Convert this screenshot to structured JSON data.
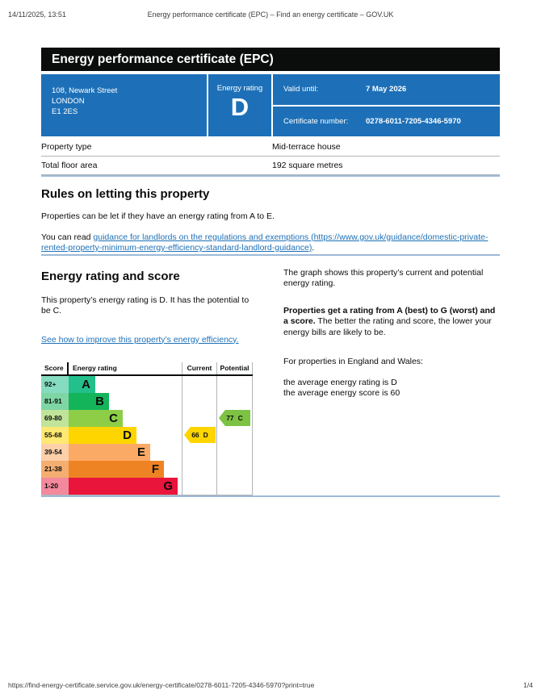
{
  "print_header": {
    "datetime": "14/11/2025, 13:51",
    "title": "Energy performance certificate (EPC) – Find an energy certificate – GOV.UK"
  },
  "banner": {
    "title": "Energy performance certificate (EPC)"
  },
  "colors": {
    "govuk_blue": "#1d70b8",
    "banner_black": "#0b0c0c",
    "section_rule_blue": "#9db9d6"
  },
  "summary_box": {
    "address_lines": [
      "108, Newark Street",
      "LONDON",
      "E1 2ES"
    ],
    "energy_rating_label": "Energy rating",
    "energy_rating": "D",
    "valid_until_label": "Valid until:",
    "valid_until": "7 May 2026",
    "certificate_number_label": "Certificate number:",
    "certificate_number": "0278-6011-7205-4346-5970"
  },
  "property_table": {
    "rows": [
      {
        "label": "Property type",
        "value": "Mid-terrace house"
      },
      {
        "label": "Total floor area",
        "value": "192 square metres"
      }
    ]
  },
  "letting_rules": {
    "heading": "Rules on letting this property",
    "paragraph": "Properties can be let if they have an energy rating from A to E.",
    "link_prefix": "You can read ",
    "link_text": "guidance for landlords on the regulations and exemptions (https://www.gov.uk/guidance/domestic-private-rented-property-minimum-energy-efficiency-standard-landlord-guidance)",
    "link_suffix": "."
  },
  "rating_section": {
    "heading": "Energy rating and score",
    "paragraph": "This property’s energy rating is D. It has the potential to be C.",
    "improve_link": "See how to improve this property’s energy efficiency.",
    "right_para1": "The graph shows this property’s current and potential energy rating.",
    "right_para2_bold": "Properties get a rating from A (best) to G (worst) and a score.",
    "right_para2_rest": " The better the rating and score, the lower your energy bills are likely to be.",
    "right_para3": "For properties in England and Wales:",
    "right_para4_line1": "the average energy rating is D",
    "right_para4_line2": "the average energy score is 60"
  },
  "chart_data": {
    "type": "epc-rating-bands",
    "headers": {
      "score": "Score",
      "rating": "Energy rating",
      "current": "Current",
      "potential": "Potential"
    },
    "bands": [
      {
        "band": "A",
        "score_range": "92+",
        "color": "#23c08c",
        "tint": "#86dcc0"
      },
      {
        "band": "B",
        "score_range": "81-91",
        "color": "#14b45a",
        "tint": "#7ed6a4"
      },
      {
        "band": "C",
        "score_range": "69-80",
        "color": "#8dce46",
        "tint": "#c0e499"
      },
      {
        "band": "D",
        "score_range": "55-68",
        "color": "#ffd500",
        "tint": "#ffe873"
      },
      {
        "band": "E",
        "score_range": "39-54",
        "color": "#fbaa65",
        "tint": "#fdd0aa"
      },
      {
        "band": "F",
        "score_range": "21-38",
        "color": "#ee8324",
        "tint": "#f4ae71"
      },
      {
        "band": "G",
        "score_range": "1-20",
        "color": "#e9153b",
        "tint": "#f3899c"
      }
    ],
    "current": {
      "score": 66,
      "band": "D",
      "color": "#ffd500"
    },
    "potential": {
      "score": 77,
      "band": "C",
      "color": "#7dc242"
    }
  },
  "footer": {
    "url": "https://find-energy-certificate.service.gov.uk/energy-certificate/0278-6011-7205-4346-5970?print=true",
    "page": "1/4"
  }
}
